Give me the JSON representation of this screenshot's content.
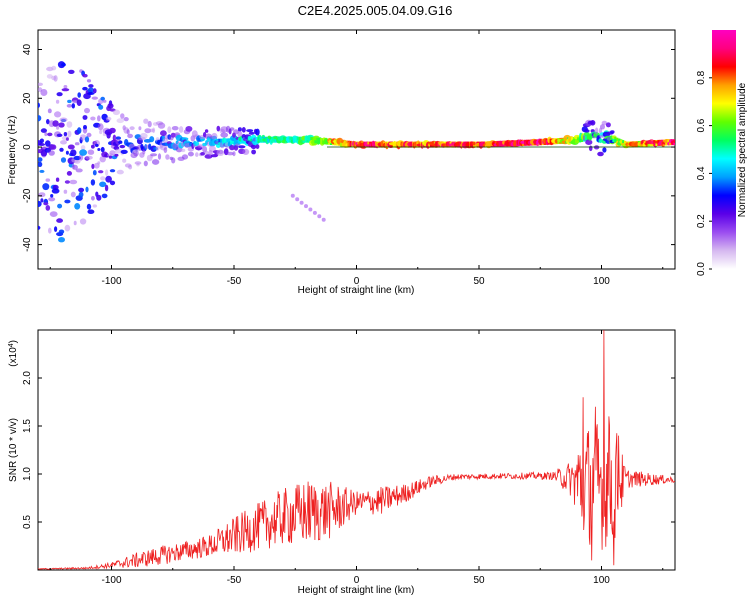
{
  "title": "C2E4.2025.005.04.09.G16",
  "chart_data": [
    {
      "type": "heatmap",
      "xlabel": "Height of straight line (km)",
      "ylabel": "Frequency (Hz)",
      "xlim": [
        -130,
        130
      ],
      "ylim": [
        -50,
        48
      ],
      "x_ticks": [
        -100,
        -50,
        0,
        50,
        100
      ],
      "y_ticks": [
        -40,
        -20,
        0,
        20,
        40
      ],
      "colorbar": {
        "label": "Normalized spectral amplitude",
        "range": [
          0,
          1
        ],
        "ticks": [
          0.0,
          0.2,
          0.4,
          0.6,
          0.8
        ],
        "colors": [
          "#ffffff",
          "#d6b8f0",
          "#9b4df0",
          "#5a00e8",
          "#0000ff",
          "#00a0ff",
          "#00ffff",
          "#00ff60",
          "#60ff00",
          "#ffff00",
          "#ffa000",
          "#ff0000",
          "#ff0080",
          "#ff00c0"
        ]
      },
      "ridge": [
        {
          "x": -125,
          "f": -2,
          "amp": 0.15,
          "spread": 40
        },
        {
          "x": -110,
          "f": 0,
          "amp": 0.25,
          "spread": 30
        },
        {
          "x": -95,
          "f": 1,
          "amp": 0.3,
          "spread": 12
        },
        {
          "x": -80,
          "f": 2,
          "amp": 0.35,
          "spread": 8
        },
        {
          "x": -60,
          "f": 2,
          "amp": 0.4,
          "spread": 6
        },
        {
          "x": -40,
          "f": 3,
          "amp": 0.5,
          "spread": 5
        },
        {
          "x": -20,
          "f": 3,
          "amp": 0.55,
          "spread": 4
        },
        {
          "x": 0,
          "f": 1,
          "amp": 0.85,
          "spread": 2
        },
        {
          "x": 25,
          "f": 1,
          "amp": 0.8,
          "spread": 2
        },
        {
          "x": 50,
          "f": 1,
          "amp": 0.85,
          "spread": 1.5
        },
        {
          "x": 75,
          "f": 2,
          "amp": 0.9,
          "spread": 1.5
        },
        {
          "x": 90,
          "f": 3,
          "amp": 0.6,
          "spread": 4
        },
        {
          "x": 100,
          "f": 5,
          "amp": 0.5,
          "spread": 8
        },
        {
          "x": 110,
          "f": 1,
          "amp": 0.7,
          "spread": 2
        },
        {
          "x": 128,
          "f": 2,
          "amp": 0.9,
          "spread": 2
        }
      ]
    },
    {
      "type": "line",
      "xlabel": "Height of straight line (km)",
      "ylabel": "SNR (10 * v/v)",
      "y_multiplier": "(x10",
      "y_multiplier_exp": "4",
      "y_multiplier_close": ")",
      "xlim": [
        -130,
        130
      ],
      "ylim": [
        0,
        2.5
      ],
      "x_ticks": [
        -100,
        -50,
        0,
        50,
        100
      ],
      "y_ticks": [
        0.5,
        1.0,
        1.5,
        2.0
      ],
      "y_tick_labels": [
        "0.5",
        "1.0",
        "1.5",
        "2.0"
      ],
      "color": "#ee2020",
      "envelope": [
        {
          "x": -130,
          "base": 0.01,
          "amp": 0.005
        },
        {
          "x": -110,
          "base": 0.02,
          "amp": 0.01
        },
        {
          "x": -100,
          "base": 0.05,
          "amp": 0.03
        },
        {
          "x": -90,
          "base": 0.1,
          "amp": 0.08
        },
        {
          "x": -80,
          "base": 0.15,
          "amp": 0.1
        },
        {
          "x": -70,
          "base": 0.2,
          "amp": 0.1
        },
        {
          "x": -60,
          "base": 0.25,
          "amp": 0.12
        },
        {
          "x": -50,
          "base": 0.35,
          "amp": 0.2
        },
        {
          "x": -40,
          "base": 0.45,
          "amp": 0.25
        },
        {
          "x": -30,
          "base": 0.55,
          "amp": 0.3
        },
        {
          "x": -20,
          "base": 0.6,
          "amp": 0.35
        },
        {
          "x": -10,
          "base": 0.62,
          "amp": 0.3
        },
        {
          "x": 0,
          "base": 0.7,
          "amp": 0.12
        },
        {
          "x": 10,
          "base": 0.72,
          "amp": 0.15
        },
        {
          "x": 20,
          "base": 0.8,
          "amp": 0.1
        },
        {
          "x": 30,
          "base": 0.92,
          "amp": 0.06
        },
        {
          "x": 40,
          "base": 0.97,
          "amp": 0.03
        },
        {
          "x": 60,
          "base": 0.98,
          "amp": 0.03
        },
        {
          "x": 80,
          "base": 0.98,
          "amp": 0.04
        },
        {
          "x": 88,
          "base": 0.95,
          "amp": 0.2
        },
        {
          "x": 92,
          "base": 0.9,
          "amp": 0.6
        },
        {
          "x": 100,
          "base": 0.9,
          "amp": 0.7
        },
        {
          "x": 106,
          "base": 0.9,
          "amp": 0.6
        },
        {
          "x": 110,
          "base": 0.95,
          "amp": 0.1
        },
        {
          "x": 130,
          "base": 0.94,
          "amp": 0.03
        }
      ],
      "spikes": [
        {
          "x": 92.5,
          "y": 1.8
        },
        {
          "x": 97.5,
          "y": 1.7
        },
        {
          "x": 101,
          "y": 2.5
        },
        {
          "x": 103,
          "y": 1.6
        },
        {
          "x": 107,
          "y": 1.4
        },
        {
          "x": 96,
          "y": 0.1
        },
        {
          "x": 105,
          "y": 0.05
        }
      ]
    }
  ]
}
